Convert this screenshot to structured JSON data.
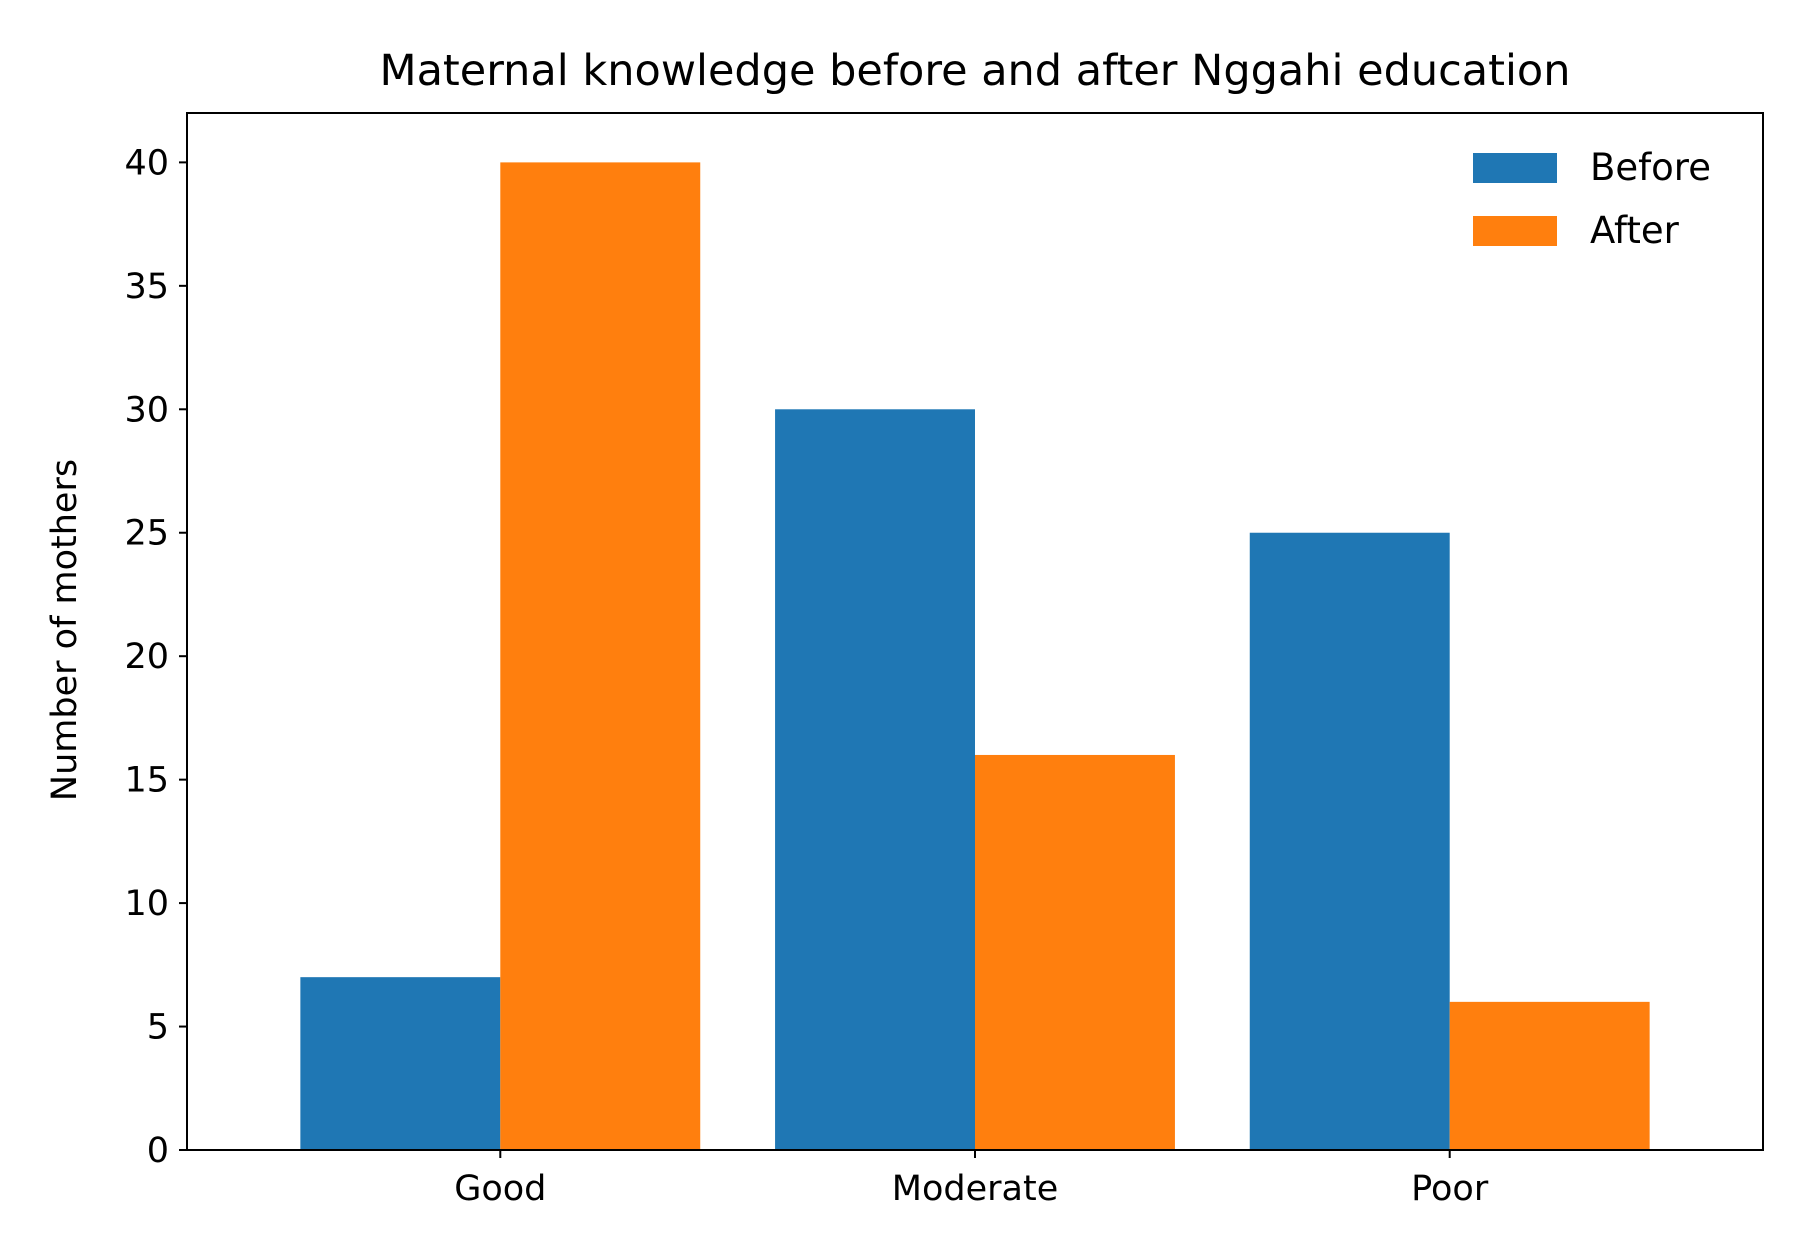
{
  "chart_data": {
    "type": "bar",
    "title": "Maternal knowledge before and after Nggahi education",
    "xlabel": "",
    "ylabel": "Number of mothers",
    "categories": [
      "Good",
      "Moderate",
      "Poor"
    ],
    "series": [
      {
        "name": "Before",
        "values": [
          7,
          30,
          25
        ],
        "color": "#1f77b4"
      },
      {
        "name": "After",
        "values": [
          40,
          16,
          6
        ],
        "color": "#ff7f0e"
      }
    ],
    "ylim": [
      0,
      42
    ],
    "yticks": [
      0,
      5,
      10,
      15,
      20,
      25,
      30,
      35,
      40
    ],
    "grid": false,
    "legend_position": "top-right"
  }
}
